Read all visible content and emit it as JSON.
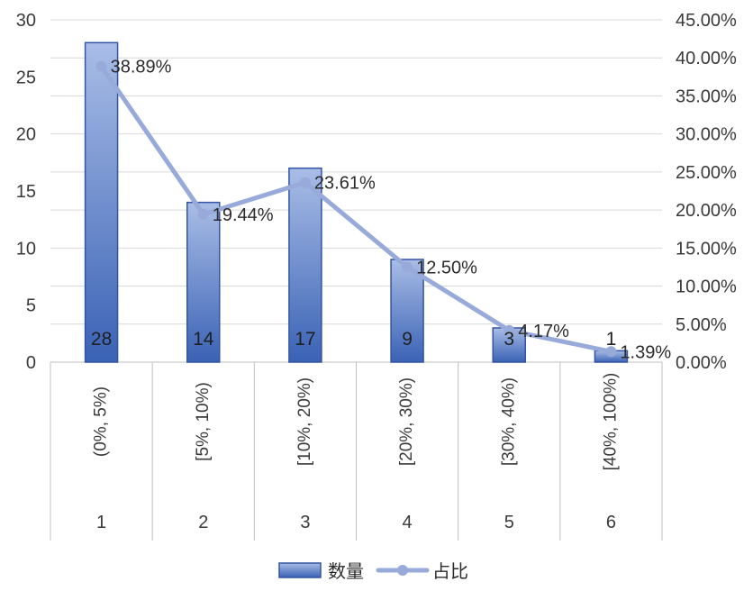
{
  "chart_data": {
    "type": "bar",
    "categories": [
      "(0%, 5%)",
      "[5%, 10%)",
      "[10%, 20%)",
      "[20%, 30%)",
      "[30%, 40%)",
      "[40%, 100%)"
    ],
    "group_labels": [
      "1",
      "2",
      "3",
      "4",
      "5",
      "6"
    ],
    "series": [
      {
        "name": "数量",
        "type": "bar",
        "axis": "left",
        "values": [
          28,
          14,
          17,
          9,
          3,
          1
        ],
        "labels": [
          "28",
          "14",
          "17",
          "9",
          "3",
          "1"
        ]
      },
      {
        "name": "占比",
        "type": "line",
        "axis": "right",
        "values": [
          38.89,
          19.44,
          23.61,
          12.5,
          4.17,
          1.39
        ],
        "labels": [
          "38.89%",
          "19.44%",
          "23.61%",
          "12.50%",
          "4.17%",
          "1.39%"
        ]
      }
    ],
    "left_axis": {
      "ylim": [
        0,
        30
      ],
      "ticks": [
        "0",
        "5",
        "10",
        "15",
        "20",
        "25",
        "30"
      ]
    },
    "right_axis": {
      "ylim": [
        0,
        45
      ],
      "ticks": [
        "0.00%",
        "5.00%",
        "10.00%",
        "15.00%",
        "20.00%",
        "25.00%",
        "30.00%",
        "35.00%",
        "40.00%",
        "45.00%"
      ]
    },
    "grid": true,
    "legend_position": "bottom",
    "colors": {
      "bar_top": "#a9bde6",
      "bar_bottom": "#3a62b5",
      "bar_stroke": "#3355a4",
      "line": "#98aad9",
      "grid": "#d9d9d9",
      "axis": "#bfbfbf"
    }
  }
}
